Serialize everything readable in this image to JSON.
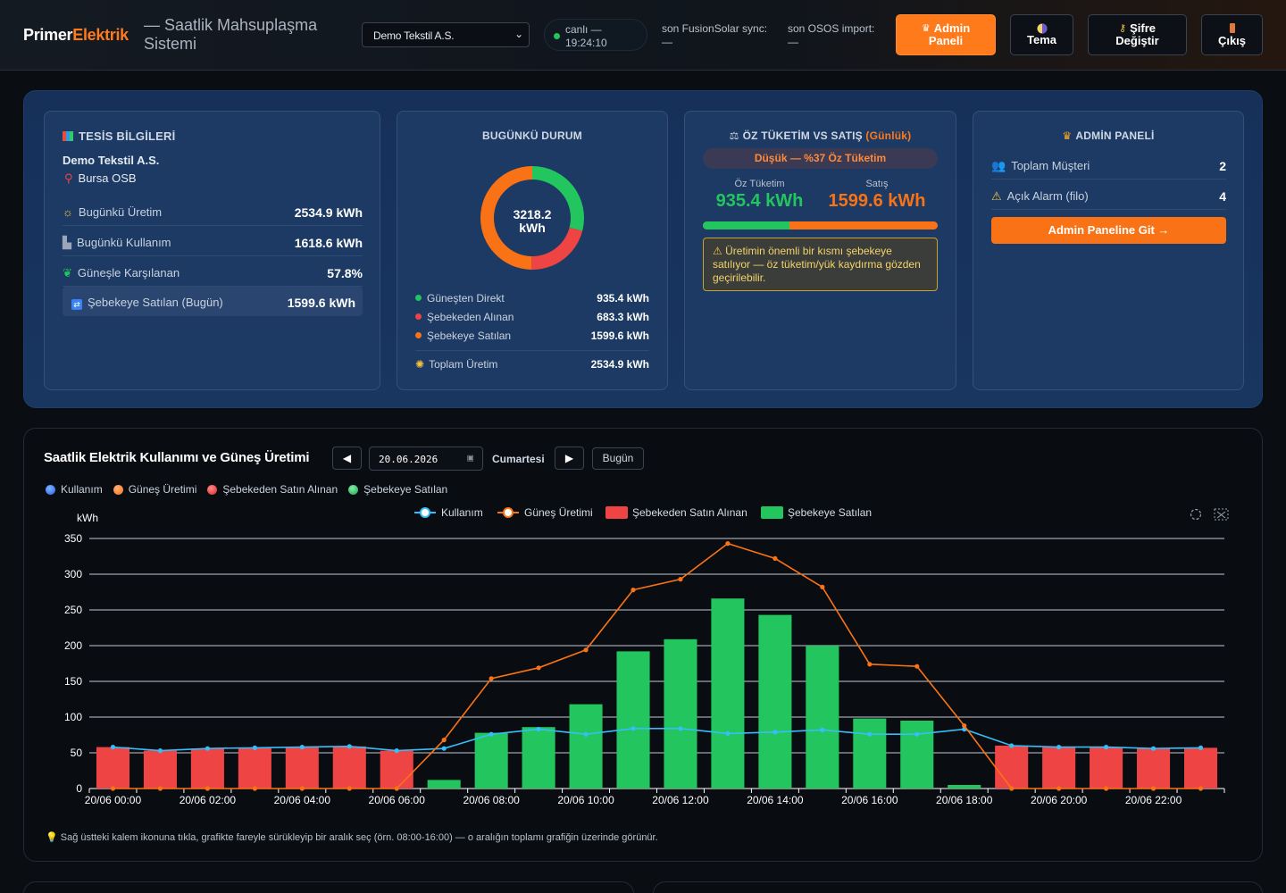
{
  "header": {
    "brand_primary": "Primer",
    "brand_secondary": "Elektrik",
    "subtitle": "— Saatlik Mahsuplaşma Sistemi",
    "company_selected": "Demo Tekstil A.S.",
    "live_label": "canlı —",
    "live_time": "19:24:10",
    "fusion_label": "son FusionSolar sync:",
    "fusion_value": "—",
    "osos_label": "son OSOS import:",
    "osos_value": "—",
    "admin_btn_line1": "Admin",
    "admin_btn_line2": "Paneli",
    "theme_btn": "Tema",
    "password_btn_line1": "Şifre",
    "password_btn_line2": "Değiştir",
    "logout_btn": "Çıkış",
    "accent_color": "#ff7a1a"
  },
  "facility": {
    "title": "TESİS BİLGİLERİ",
    "name": "Demo Tekstil A.S.",
    "location": "Bursa OSB",
    "rows": [
      {
        "label": "Bugünkü Üretim",
        "value": "2534.9 kWh",
        "icon": "sun-icon"
      },
      {
        "label": "Bugünkü Kullanım",
        "value": "1618.6 kWh",
        "icon": "factory-icon"
      },
      {
        "label": "Güneşle Karşılanan",
        "value": "57.8%",
        "icon": "leaf-icon"
      },
      {
        "label": "Şebekeye Satılan (Bugün)",
        "value": "1599.6 kWh",
        "icon": "exchange-icon"
      }
    ]
  },
  "today": {
    "title": "BUGÜNKÜ DURUM",
    "donut_total": "3218.2",
    "donut_unit": "kWh",
    "slices": [
      {
        "label": "Güneşten Direkt",
        "value": "935.4 kWh",
        "amount": 935.4,
        "color": "#22c55e"
      },
      {
        "label": "Şebekeden Alınan",
        "value": "683.3 kWh",
        "amount": 683.3,
        "color": "#ef4444"
      },
      {
        "label": "Şebekeye Satılan",
        "value": "1599.6 kWh",
        "amount": 1599.6,
        "color": "#f97316"
      }
    ],
    "total_label": "Toplam Üretim",
    "total_value": "2534.9 kWh"
  },
  "self_consumption": {
    "title": "ÖZ TÜKETİM VS SATIŞ",
    "title_suffix": "(Günlük)",
    "badge": "Düşük — %37 Öz Tüketim",
    "consumption_label": "Öz Tüketim",
    "consumption_value": "935.4 kWh",
    "sale_label": "Satış",
    "sale_value": "1599.6 kWh",
    "ratio_percent": 37,
    "warning": "Üretimin önemli bir kısmı şebekeye satılıyor — öz tüketim/yük kaydırma gözden geçirilebilir."
  },
  "admin": {
    "title": "ADMİN PANELİ",
    "rows": [
      {
        "label": "Toplam Müşteri",
        "value": "2"
      },
      {
        "label": "Açık Alarm (filo)",
        "value": "4"
      }
    ],
    "button": "Admin Paneline Git →"
  },
  "chart_section": {
    "title": "Saatlik Elektrik Kullanımı ve Güneş Üretimi",
    "prev": "◀",
    "next": "▶",
    "date": "20.06.2026",
    "dayname": "Cumartesi",
    "today_btn": "Bugün",
    "filter_legend": [
      "Kullanım",
      "Güneş Üretimi",
      "Şebekeden Satın Alınan",
      "Şebekeye Satılan"
    ],
    "hint": "Sağ üstteki kalem ikonuna tıkla, grafikte fareyle sürükleyip bir aralık seç (örn. 08:00-16:00) — o aralığın toplamı grafiğin üzerinde görünür."
  },
  "chart_data": {
    "type": "bar",
    "ylabel": "kWh",
    "ylim": [
      0,
      350
    ],
    "yticks": [
      0,
      50,
      100,
      150,
      200,
      250,
      300,
      350
    ],
    "x": [
      "00:00",
      "01:00",
      "02:00",
      "03:00",
      "04:00",
      "05:00",
      "06:00",
      "07:00",
      "08:00",
      "09:00",
      "10:00",
      "11:00",
      "12:00",
      "13:00",
      "14:00",
      "15:00",
      "16:00",
      "17:00",
      "18:00",
      "19:00",
      "20:00",
      "21:00",
      "22:00",
      "23:00"
    ],
    "xtick_labels": [
      "20/06 00:00",
      "20/06 02:00",
      "20/06 04:00",
      "20/06 06:00",
      "20/06 08:00",
      "20/06 10:00",
      "20/06 12:00",
      "20/06 14:00",
      "20/06 16:00",
      "20/06 18:00",
      "20/06 20:00",
      "20/06 22:00"
    ],
    "legend": [
      "Kullanım",
      "Güneş Üretimi",
      "Şebekeden Satın Alınan",
      "Şebekeye Satılan"
    ],
    "series": [
      {
        "name": "Kullanım",
        "type": "line",
        "color": "#38bdf8",
        "values": [
          58,
          53,
          56,
          57,
          58,
          59,
          53,
          56,
          76,
          83,
          76,
          84,
          84,
          77,
          79,
          82,
          76,
          76,
          83,
          60,
          58,
          58,
          56,
          57
        ]
      },
      {
        "name": "Güneş Üretimi",
        "type": "line",
        "color": "#f97316",
        "values": [
          0,
          0,
          0,
          0,
          0,
          0,
          0,
          68,
          154,
          169,
          194,
          278,
          293,
          343,
          322,
          282,
          174,
          171,
          88,
          0,
          0,
          0,
          0,
          0
        ]
      },
      {
        "name": "Şebekeden Satın Alınan",
        "type": "bar",
        "color": "#ef4444",
        "values": [
          58,
          53,
          56,
          57,
          58,
          59,
          53,
          0,
          0,
          0,
          0,
          0,
          0,
          0,
          0,
          0,
          0,
          0,
          0,
          60,
          58,
          58,
          56,
          57
        ]
      },
      {
        "name": "Şebekeye Satılan",
        "type": "bar",
        "color": "#22c55e",
        "values": [
          0,
          0,
          0,
          0,
          0,
          0,
          0,
          12,
          78,
          86,
          118,
          192,
          209,
          266,
          243,
          200,
          98,
          95,
          5,
          0,
          0,
          0,
          0,
          0
        ]
      }
    ]
  }
}
